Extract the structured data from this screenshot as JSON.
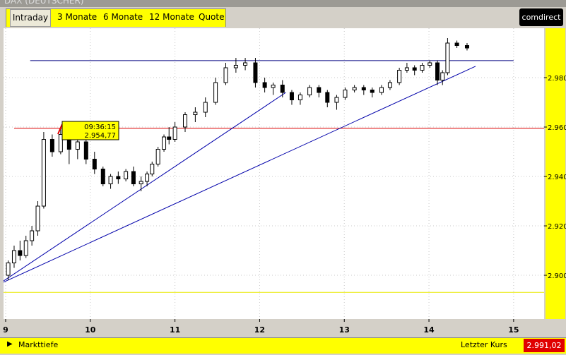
{
  "header": {
    "title": "DAX (DEUTSCHER)",
    "tabs": [
      "Intraday",
      "3 Monate",
      "6 Monate",
      "12 Monate",
      "Quote"
    ],
    "logo": "comdirect"
  },
  "chart_data": {
    "type": "candlestick",
    "x": [
      9.03,
      9.1,
      9.17,
      9.24,
      9.31,
      9.38,
      9.45,
      9.55,
      9.65,
      9.75,
      9.85,
      9.95,
      10.05,
      10.15,
      10.24,
      10.33,
      10.42,
      10.51,
      10.6,
      10.67,
      10.73,
      10.8,
      10.87,
      10.93,
      11.0,
      11.12,
      11.24,
      11.36,
      11.48,
      11.6,
      11.72,
      11.83,
      11.95,
      12.06,
      12.16,
      12.27,
      12.38,
      12.48,
      12.59,
      12.7,
      12.8,
      12.91,
      13.01,
      13.12,
      13.23,
      13.33,
      13.44,
      13.54,
      13.65,
      13.74,
      13.83,
      13.92,
      14.01,
      14.1,
      14.16,
      14.22,
      14.33,
      14.45
    ],
    "open": [
      2900,
      2905,
      2910,
      2908,
      2914,
      2918,
      2928,
      2955,
      2950,
      2957,
      2951,
      2954,
      2947,
      2943,
      2937,
      2940,
      2939,
      2942,
      2937,
      2938,
      2941,
      2945,
      2951,
      2956,
      2955,
      2960,
      2965,
      2966,
      2970,
      2978,
      2984,
      2985,
      2986,
      2978,
      2976,
      2977,
      2974,
      2971,
      2973,
      2976,
      2974,
      2970,
      2972,
      2975,
      2976,
      2975,
      2974,
      2976,
      2978,
      2983,
      2984,
      2983,
      2985,
      2986,
      2979,
      2982,
      2994,
      2993
    ],
    "high": [
      2906,
      2912,
      2914,
      2916,
      2920,
      2930,
      2958,
      2957,
      2960,
      2958,
      2956,
      2955,
      2950,
      2944,
      2941,
      2942,
      2943,
      2944,
      2940,
      2942,
      2946,
      2952,
      2957,
      2960,
      2962,
      2966,
      2968,
      2972,
      2980,
      2986,
      2988,
      2988,
      2988,
      2980,
      2978,
      2979,
      2975,
      2974,
      2977,
      2977,
      2975,
      2973,
      2976,
      2977,
      2977,
      2976,
      2977,
      2979,
      2984,
      2986,
      2985,
      2986,
      2987,
      2987,
      2983,
      2996,
      2995,
      2994
    ],
    "low": [
      2898,
      2903,
      2906,
      2907,
      2912,
      2916,
      2927,
      2948,
      2949,
      2945,
      2947,
      2945,
      2941,
      2936,
      2935,
      2937,
      2938,
      2936,
      2934,
      2936,
      2940,
      2944,
      2950,
      2953,
      2954,
      2958,
      2962,
      2964,
      2969,
      2977,
      2982,
      2983,
      2976,
      2974,
      2973,
      2972,
      2969,
      2969,
      2972,
      2972,
      2968,
      2967,
      2971,
      2974,
      2973,
      2972,
      2973,
      2975,
      2977,
      2982,
      2981,
      2982,
      2984,
      2977,
      2977,
      2981,
      2992,
      2991
    ],
    "close": [
      2905,
      2910,
      2908,
      2914,
      2918,
      2928,
      2955,
      2950,
      2957,
      2951,
      2954,
      2947,
      2943,
      2937,
      2940,
      2939,
      2942,
      2937,
      2938,
      2941,
      2945,
      2951,
      2956,
      2955,
      2960,
      2965,
      2966,
      2970,
      2978,
      2984,
      2985,
      2986,
      2978,
      2976,
      2977,
      2974,
      2971,
      2973,
      2976,
      2974,
      2970,
      2972,
      2975,
      2976,
      2975,
      2974,
      2976,
      2978,
      2983,
      2984,
      2983,
      2985,
      2986,
      2979,
      2982,
      2994,
      2993,
      2992
    ],
    "up_color": "#ffffff",
    "down_color": "#000000",
    "xlim": [
      8.975,
      15.36
    ],
    "xticks": [
      9,
      10,
      11,
      12,
      13,
      14,
      15
    ],
    "ylim": [
      2882.3,
      3000
    ],
    "yticks": [
      {
        "value": 2900,
        "label": "2.900"
      },
      {
        "value": 2920,
        "label": "2.920"
      },
      {
        "value": 2940,
        "label": "2.940"
      },
      {
        "value": 2960,
        "label": "2.960"
      },
      {
        "value": 2980,
        "label": "2.980"
      }
    ],
    "grid": true,
    "lines": [
      {
        "x1": 9.29,
        "y1": 2986.9,
        "x2": 15.0,
        "y2": 2986.9,
        "color": "#000080"
      },
      {
        "x1": 9.1,
        "y1": 2959.5,
        "x2": 15.36,
        "y2": 2959.5,
        "color": "#dd0000"
      },
      {
        "x1": 8.975,
        "y1": 2893.1,
        "x2": 15.36,
        "y2": 2893.1,
        "color": "#e8e800"
      },
      {
        "x1": 8.975,
        "y1": 2897.7,
        "x2": 12.31,
        "y2": 2974,
        "color": "#0000aa"
      },
      {
        "x1": 8.975,
        "y1": 2897.2,
        "x2": 14.55,
        "y2": 2984.6,
        "color": "#0000aa"
      }
    ],
    "tooltip": {
      "time": "09:36:15",
      "price": "2.954,77"
    }
  },
  "footer": {
    "left": "Markttiefe",
    "last_label": "Letzter Kurs",
    "last_value": "2.991,02"
  }
}
